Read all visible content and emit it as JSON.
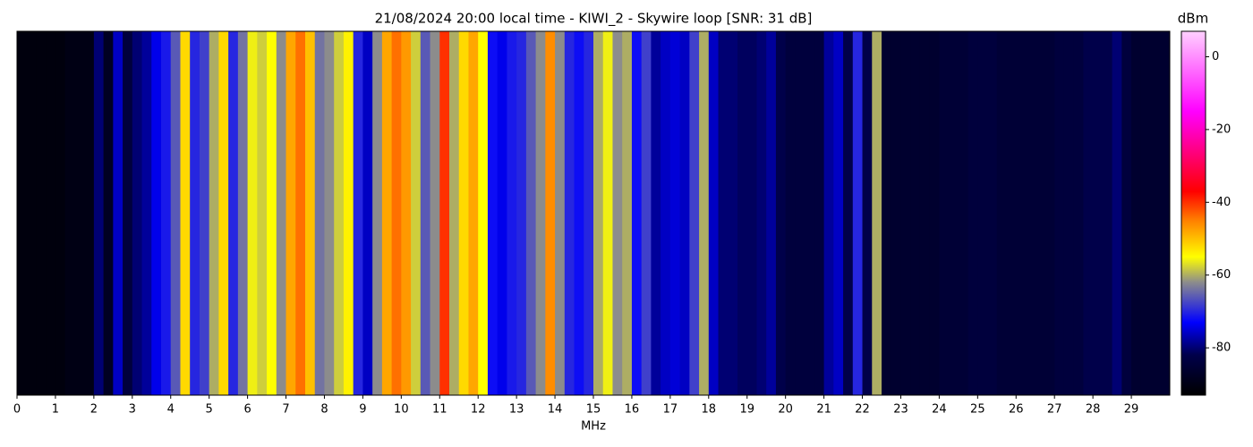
{
  "chart_data": {
    "type": "spectrogram",
    "title": "21/08/2024 20:00 local time - KIWI_2 - Skywire loop [SNR: 31 dB]",
    "xlabel": "MHz",
    "colorbar_label": "dBm",
    "xlim": [
      0,
      30
    ],
    "xticks": [
      0,
      1,
      2,
      3,
      4,
      5,
      6,
      7,
      8,
      9,
      10,
      11,
      12,
      13,
      14,
      15,
      16,
      17,
      18,
      19,
      20,
      21,
      22,
      23,
      24,
      25,
      26,
      27,
      28,
      29
    ],
    "clim": [
      -93,
      7
    ],
    "cticks": [
      0,
      -20,
      -40,
      -60,
      -80
    ],
    "colorscale": [
      [
        -93,
        "#000000"
      ],
      [
        -82,
        "#00004a"
      ],
      [
        -73,
        "#0000ff"
      ],
      [
        -62,
        "#8c8c8c"
      ],
      [
        -55,
        "#ffff00"
      ],
      [
        -45,
        "#ff8000"
      ],
      [
        -37,
        "#ff0000"
      ],
      [
        -15,
        "#ff00ff"
      ],
      [
        7,
        "#ffd0ff"
      ]
    ],
    "values": [
      -91,
      -91,
      -91,
      -91,
      -91,
      -90,
      -90,
      -90,
      -80,
      -88,
      -76,
      -84,
      -80,
      -78,
      -74,
      -71,
      -66,
      -52,
      -70,
      -68,
      -60,
      -52,
      -70,
      -64,
      -56,
      -58,
      -55,
      -62,
      -48,
      -44,
      -50,
      -64,
      -62,
      -58,
      -54,
      -70,
      -76,
      -62,
      -48,
      -44,
      -47,
      -58,
      -66,
      -62,
      -40,
      -60,
      -52,
      -48,
      -55,
      -72,
      -74,
      -71,
      -70,
      -66,
      -62,
      -46,
      -62,
      -70,
      -72,
      -70,
      -60,
      -56,
      -62,
      -60,
      -72,
      -68,
      -78,
      -76,
      -75,
      -76,
      -68,
      -60,
      -76,
      -80,
      -80,
      -81,
      -81,
      -80,
      -78,
      -82,
      -84,
      -84,
      -84,
      -84,
      -78,
      -76,
      -82,
      -70,
      -82,
      -60,
      -86,
      -86,
      -86,
      -86,
      -86,
      -86,
      -85,
      -85,
      -85,
      -84,
      -84,
      -84,
      -85,
      -85,
      -85,
      -85,
      -85,
      -85,
      -84,
      -84,
      -84,
      -82,
      -82,
      -82,
      -80,
      -84,
      -86,
      -86,
      -86,
      -86
    ]
  }
}
